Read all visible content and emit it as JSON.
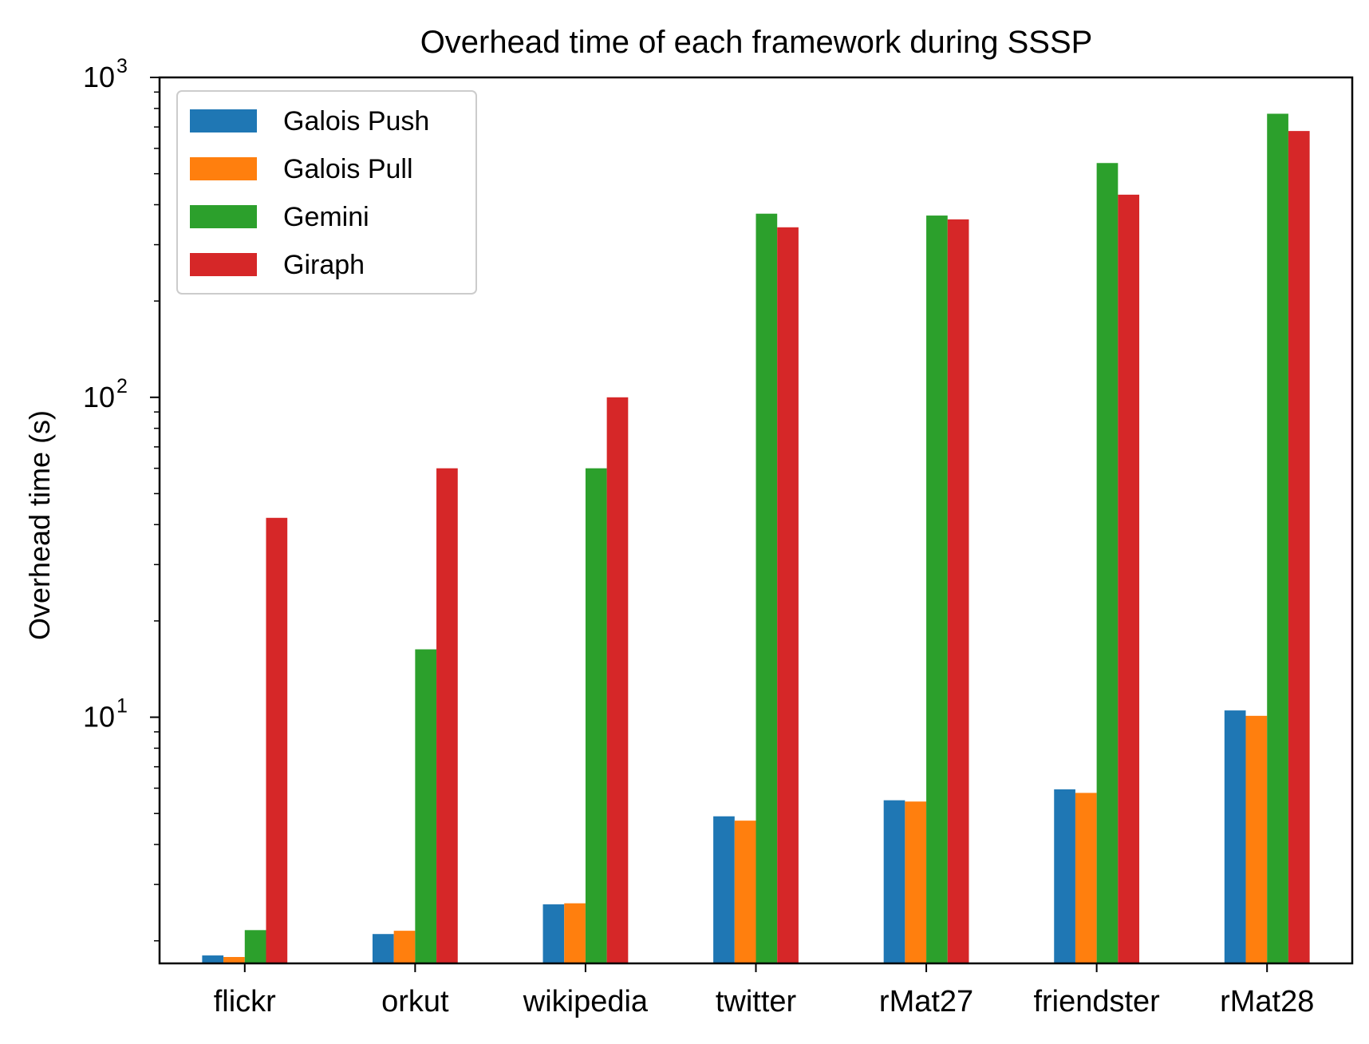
{
  "chart_data": {
    "type": "bar",
    "title": "Overhead time of each framework during SSSP",
    "xlabel": "",
    "ylabel": "Overhead time (s)",
    "yscale": "log",
    "ylim": [
      1.7,
      1000
    ],
    "yticks": [
      {
        "value": 10,
        "base": "10",
        "exp": "1"
      },
      {
        "value": 100,
        "base": "10",
        "exp": "2"
      },
      {
        "value": 1000,
        "base": "10",
        "exp": "3"
      }
    ],
    "categories": [
      "flickr",
      "orkut",
      "wikipedia",
      "twitter",
      "rMat27",
      "friendster",
      "rMat28"
    ],
    "series": [
      {
        "name": "Galois Push",
        "color": "#1f77b4",
        "values": [
          1.8,
          2.1,
          2.6,
          4.9,
          5.5,
          5.95,
          10.5
        ]
      },
      {
        "name": "Galois Pull",
        "color": "#ff7f0e",
        "values": [
          1.78,
          2.15,
          2.62,
          4.75,
          5.45,
          5.8,
          10.1
        ]
      },
      {
        "name": "Gemini",
        "color": "#2ca02c",
        "values": [
          2.16,
          16.3,
          60,
          375,
          370,
          540,
          770
        ]
      },
      {
        "name": "Giraph",
        "color": "#d62728",
        "values": [
          42,
          60,
          100,
          340,
          360,
          430,
          680
        ]
      }
    ],
    "legend_position": "top-left",
    "grid": false
  }
}
